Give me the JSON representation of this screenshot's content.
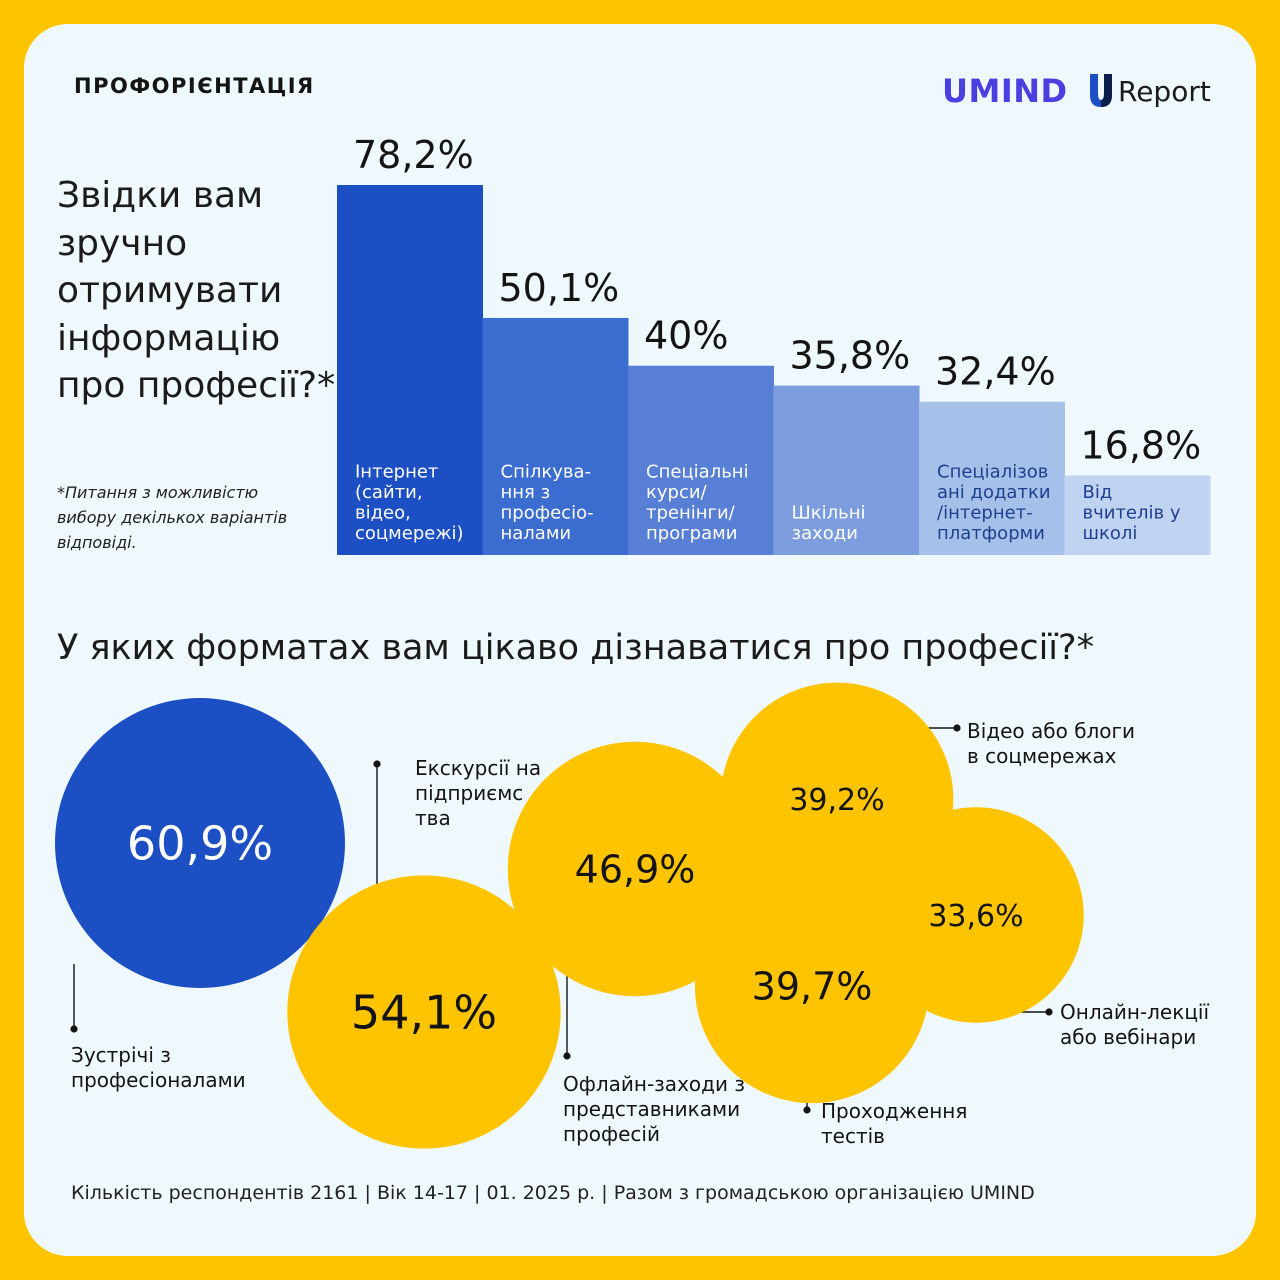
{
  "header": {
    "section_tag": "ПРОФОРІЄНТАЦІЯ",
    "logo_umind": "UMIND",
    "logo_ureport_mark": "U",
    "logo_ureport_text": "Report"
  },
  "colors": {
    "page_border": "#FFC400",
    "card_background": "#EFF8FC",
    "accent_blue": "#1C4FC4",
    "accent_yellow": "#FFC400",
    "umind_purple": "#4B3FE0"
  },
  "question1": {
    "title": "Звідки вам зручно отримувати інформацію про професії?*",
    "note": "*Питання з можливістю вибору декількох варіантів відповіді."
  },
  "question2": {
    "title": "У яких форматах вам цікаво дізнаватися про професії?*"
  },
  "footer": {
    "text": "Кількість респондентів 2161 | Вік 14-17 | 01. 2025 р. | Разом з громадською організацією UMIND"
  },
  "chart_data": [
    {
      "type": "bar",
      "title": "Звідки вам зручно отримувати інформацію про професії?*",
      "categories": [
        "Інтернет (сайти, відео, соцмережі)",
        "Спілкува-ння з професіо-налами",
        "Спеціальні курси/ тренінги/ програми",
        "Шкільні заходи",
        "Спеціалізов ані додатки /інтернет-платформи",
        "Від вчителів у школі"
      ],
      "category_lines": [
        [
          "Інтернет",
          "(сайти,",
          "відео,",
          "соцмережі)"
        ],
        [
          "Спілкува-",
          "ння з",
          "професіо-",
          "налами"
        ],
        [
          "Спеціальні",
          "курси/",
          "тренінги/",
          "програми"
        ],
        [
          "Шкільні",
          "заходи"
        ],
        [
          "Спеціалізов",
          "ані додатки",
          "/інтернет-",
          "платформи"
        ],
        [
          "Від",
          "вчителів у",
          "школі"
        ]
      ],
      "values": [
        78.2,
        50.1,
        40,
        35.8,
        32.4,
        16.8
      ],
      "labels": [
        "78,2%",
        "50,1%",
        "40%",
        "35,8%",
        "32,4%",
        "16,8%"
      ],
      "colors": [
        "#1C4FC4",
        "#3B6CCF",
        "#577FD5",
        "#7B9DDE",
        "#A7C0EA",
        "#C0D3F1"
      ],
      "ylim": [
        0,
        78.2
      ],
      "grid": false
    },
    {
      "type": "bubble",
      "title": "У яких форматах вам цікаво дізнаватися про професії?*",
      "items": [
        {
          "label": "Зустрічі з професіоналами",
          "lines": [
            "Зустрічі з",
            "професіоналами"
          ],
          "value": 60.9,
          "display": "60,9%",
          "color": "#1C4FC4",
          "text_color": "#FFFFFF"
        },
        {
          "label": "Екскурсії на підприємства",
          "lines": [
            "Екскурсії на",
            "підприємс",
            "тва"
          ],
          "value": 54.1,
          "display": "54,1%",
          "color": "#FFC400",
          "text_color": "#141414"
        },
        {
          "label": "Офлайн-заходи з представниками професій",
          "lines": [
            "Офлайн-заходи з",
            "представниками",
            "професій"
          ],
          "value": 46.9,
          "display": "46,9%",
          "color": "#FFC400",
          "text_color": "#141414"
        },
        {
          "label": "Проходження тестів",
          "lines": [
            "Проходження",
            "тестів"
          ],
          "value": 39.7,
          "display": "39,7%",
          "color": "#FFC400",
          "text_color": "#141414"
        },
        {
          "label": "Відео або блоги в соцмережах",
          "lines": [
            "Відео або блоги",
            "в соцмережах"
          ],
          "value": 39.2,
          "display": "39,2%",
          "color": "#FFC400",
          "text_color": "#141414"
        },
        {
          "label": "Онлайн-лекції або вебінари",
          "lines": [
            "Онлайн-лекції",
            "або вебінари"
          ],
          "value": 33.6,
          "display": "33,6%",
          "color": "#FFC400",
          "text_color": "#141414"
        }
      ]
    }
  ]
}
